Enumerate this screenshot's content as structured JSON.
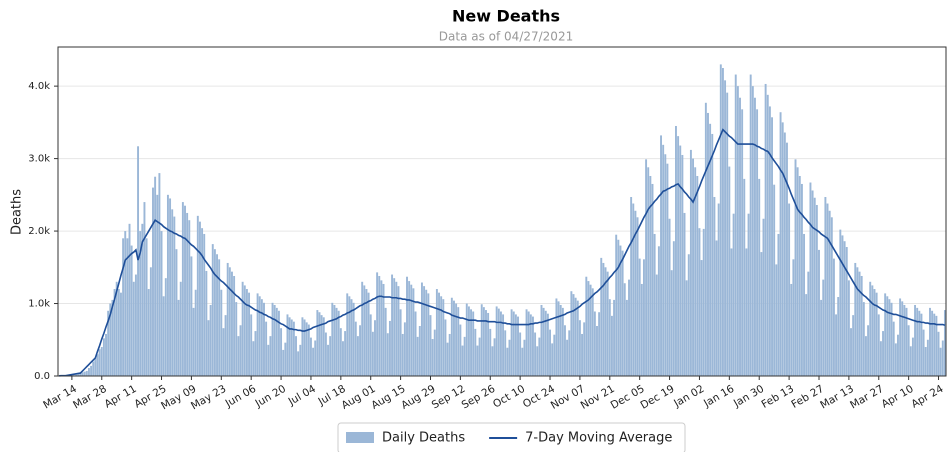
{
  "chart_data": {
    "type": "bar",
    "title": "New Deaths",
    "subtitle": "Data as of 04/27/2021",
    "y_label": "Deaths",
    "categories": [
      null,
      null,
      null,
      null,
      null,
      null,
      "Mar 14",
      null,
      null,
      null,
      null,
      null,
      null,
      null,
      null,
      null,
      null,
      null,
      null,
      null,
      "Mar 28",
      null,
      null,
      null,
      null,
      null,
      null,
      null,
      null,
      null,
      null,
      null,
      null,
      null,
      "Apr 11",
      null,
      null,
      null,
      null,
      null,
      null,
      null,
      null,
      null,
      null,
      null,
      null,
      null,
      "Apr 25",
      null,
      null,
      null,
      null,
      null,
      null,
      null,
      null,
      null,
      null,
      null,
      null,
      null,
      "May 09",
      null,
      null,
      null,
      null,
      null,
      null,
      null,
      null,
      null,
      null,
      null,
      null,
      null,
      "May 23",
      null,
      null,
      null,
      null,
      null,
      null,
      null,
      null,
      null,
      null,
      null,
      null,
      null,
      "Jun 06",
      null,
      null,
      null,
      null,
      null,
      null,
      null,
      null,
      null,
      null,
      null,
      null,
      null,
      "Jun 20",
      null,
      null,
      null,
      null,
      null,
      null,
      null,
      null,
      null,
      null,
      null,
      null,
      null,
      "Jul 04",
      null,
      null,
      null,
      null,
      null,
      null,
      null,
      null,
      null,
      null,
      null,
      null,
      null,
      "Jul 18",
      null,
      null,
      null,
      null,
      null,
      null,
      null,
      null,
      null,
      null,
      null,
      null,
      null,
      "Aug 01",
      null,
      null,
      null,
      null,
      null,
      null,
      null,
      null,
      null,
      null,
      null,
      null,
      null,
      "Aug 15",
      null,
      null,
      null,
      null,
      null,
      null,
      null,
      null,
      null,
      null,
      null,
      null,
      null,
      "Aug 29",
      null,
      null,
      null,
      null,
      null,
      null,
      null,
      null,
      null,
      null,
      null,
      null,
      null,
      "Sep 12",
      null,
      null,
      null,
      null,
      null,
      null,
      null,
      null,
      null,
      null,
      null,
      null,
      null,
      "Sep 26",
      null,
      null,
      null,
      null,
      null,
      null,
      null,
      null,
      null,
      null,
      null,
      null,
      null,
      "Oct 10",
      null,
      null,
      null,
      null,
      null,
      null,
      null,
      null,
      null,
      null,
      null,
      null,
      null,
      "Oct 24",
      null,
      null,
      null,
      null,
      null,
      null,
      null,
      null,
      null,
      null,
      null,
      null,
      null,
      "Nov 07",
      null,
      null,
      null,
      null,
      null,
      null,
      null,
      null,
      null,
      null,
      null,
      null,
      null,
      "Nov 21",
      null,
      null,
      null,
      null,
      null,
      null,
      null,
      null,
      null,
      null,
      null,
      null,
      null,
      "Dec 05",
      null,
      null,
      null,
      null,
      null,
      null,
      null,
      null,
      null,
      null,
      null,
      null,
      null,
      "Dec 19",
      null,
      null,
      null,
      null,
      null,
      null,
      null,
      null,
      null,
      null,
      null,
      null,
      null,
      "Jan 02",
      null,
      null,
      null,
      null,
      null,
      null,
      null,
      null,
      null,
      null,
      null,
      null,
      null,
      "Jan 16",
      null,
      null,
      null,
      null,
      null,
      null,
      null,
      null,
      null,
      null,
      null,
      null,
      null,
      "Jan 30",
      null,
      null,
      null,
      null,
      null,
      null,
      null,
      null,
      null,
      null,
      null,
      null,
      null,
      "Feb 13",
      null,
      null,
      null,
      null,
      null,
      null,
      null,
      null,
      null,
      null,
      null,
      null,
      null,
      "Feb 27",
      null,
      null,
      null,
      null,
      null,
      null,
      null,
      null,
      null,
      null,
      null,
      null,
      null,
      "Mar 13",
      null,
      null,
      null,
      null,
      null,
      null,
      null,
      null,
      null,
      null,
      null,
      null,
      null,
      "Mar 27",
      null,
      null,
      null,
      null,
      null,
      null,
      null,
      null,
      null,
      null,
      null,
      null,
      null,
      "Apr 10",
      null,
      null,
      null,
      null,
      null,
      null,
      null,
      null,
      null,
      null,
      null,
      null,
      null,
      "Apr 24",
      null,
      null,
      null
    ],
    "series": [
      {
        "name": "Daily Deaths",
        "type": "bar",
        "color": "#9bb7d7",
        "values": [
          1,
          4,
          3,
          5,
          7,
          9,
          10,
          11,
          18,
          25,
          40,
          50,
          60,
          70,
          110,
          140,
          200,
          250,
          300,
          370,
          400,
          520,
          580,
          900,
          1000,
          1050,
          1200,
          1300,
          1200,
          1150,
          1900,
          2000,
          1900,
          2100,
          1800,
          1300,
          1400,
          3170,
          2000,
          2100,
          2400,
          1900,
          1200,
          1500,
          2600,
          2750,
          2500,
          2800,
          2000,
          1100,
          1350,
          2500,
          2450,
          2300,
          2200,
          1750,
          1050,
          1300,
          2400,
          2350,
          2250,
          2150,
          1650,
          940,
          1190,
          2210,
          2130,
          2040,
          1960,
          1450,
          770,
          980,
          1820,
          1750,
          1680,
          1610,
          1190,
          660,
          840,
          1560,
          1500,
          1440,
          1380,
          1020,
          550,
          700,
          1300,
          1250,
          1200,
          1150,
          850,
          480,
          620,
          1140,
          1100,
          1060,
          1010,
          750,
          430,
          550,
          1010,
          980,
          940,
          900,
          660,
          360,
          460,
          850,
          810,
          780,
          750,
          550,
          340,
          430,
          810,
          780,
          740,
          710,
          530,
          390,
          490,
          910,
          880,
          840,
          810,
          600,
          430,
          550,
          1010,
          980,
          940,
          900,
          660,
          480,
          620,
          1140,
          1100,
          1060,
          1010,
          750,
          550,
          700,
          1300,
          1250,
          1200,
          1150,
          850,
          610,
          770,
          1430,
          1380,
          1320,
          1270,
          940,
          590,
          760,
          1400,
          1350,
          1300,
          1240,
          920,
          580,
          740,
          1370,
          1310,
          1260,
          1210,
          890,
          540,
          690,
          1290,
          1240,
          1190,
          1140,
          840,
          510,
          640,
          1200,
          1150,
          1100,
          1060,
          780,
          460,
          580,
          1080,
          1040,
          1000,
          950,
          710,
          420,
          540,
          1000,
          960,
          920,
          890,
          650,
          420,
          530,
          990,
          950,
          910,
          870,
          650,
          410,
          520,
          960,
          930,
          890,
          850,
          630,
          390,
          500,
          920,
          890,
          850,
          820,
          600,
          390,
          500,
          920,
          890,
          850,
          820,
          600,
          410,
          530,
          980,
          940,
          900,
          860,
          640,
          450,
          570,
          1070,
          1030,
          980,
          940,
          700,
          500,
          630,
          1170,
          1130,
          1080,
          1040,
          770,
          580,
          740,
          1370,
          1310,
          1260,
          1210,
          890,
          690,
          880,
          1630,
          1560,
          1500,
          1440,
          1060,
          830,
          1050,
          1950,
          1880,
          1800,
          1730,
          1280,
          1050,
          1330,
          2470,
          2380,
          2280,
          2190,
          1620,
          1270,
          1610,
          2990,
          2880,
          2760,
          2650,
          1960,
          1400,
          1790,
          3320,
          3190,
          3060,
          2930,
          2170,
          1460,
          1860,
          3450,
          3310,
          3180,
          3050,
          2250,
          1320,
          1680,
          3120,
          3000,
          2880,
          2760,
          2040,
          1600,
          2030,
          3770,
          3630,
          3480,
          3340,
          2470,
          1870,
          2380,
          4300,
          4250,
          4080,
          3910,
          2890,
          1760,
          2240,
          4160,
          4000,
          3840,
          3680,
          2720,
          1760,
          2240,
          4160,
          4000,
          3840,
          3680,
          2720,
          1710,
          2170,
          4030,
          3880,
          3720,
          3570,
          2640,
          1540,
          1960,
          3640,
          3500,
          3360,
          3220,
          2380,
          1270,
          1610,
          2990,
          2880,
          2760,
          2650,
          1960,
          1130,
          1440,
          2670,
          2560,
          2460,
          2360,
          1740,
          1050,
          1330,
          2470,
          2380,
          2280,
          2190,
          1620,
          850,
          1090,
          2020,
          1940,
          1860,
          1780,
          1320,
          660,
          840,
          1560,
          1500,
          1440,
          1380,
          1020,
          550,
          700,
          1300,
          1250,
          1200,
          1150,
          850,
          480,
          620,
          1140,
          1100,
          1060,
          1010,
          750,
          450,
          570,
          1070,
          1030,
          980,
          940,
          700,
          410,
          530,
          980,
          940,
          900,
          860,
          640,
          400,
          500,
          940,
          900,
          860,
          830,
          610,
          390,
          490,
          910
        ]
      },
      {
        "name": "7-Day Moving Average",
        "type": "line",
        "color": "#1f4f99",
        "values": [
          3,
          4,
          4,
          5,
          10,
          15,
          20,
          25,
          30,
          35,
          40,
          70,
          100,
          130,
          160,
          190,
          220,
          250,
          340,
          420,
          510,
          590,
          680,
          760,
          850,
          960,
          1060,
          1170,
          1280,
          1390,
          1490,
          1600,
          1630,
          1660,
          1690,
          1710,
          1740,
          1600,
          1700,
          1850,
          1900,
          1950,
          2000,
          2050,
          2100,
          2150,
          2130,
          2110,
          2090,
          2060,
          2040,
          2020,
          2000,
          1990,
          1970,
          1960,
          1940,
          1930,
          1910,
          1900,
          1870,
          1840,
          1810,
          1790,
          1760,
          1730,
          1700,
          1660,
          1610,
          1570,
          1530,
          1490,
          1440,
          1400,
          1370,
          1340,
          1310,
          1290,
          1260,
          1230,
          1200,
          1170,
          1140,
          1110,
          1090,
          1060,
          1030,
          1000,
          980,
          970,
          950,
          930,
          910,
          900,
          880,
          870,
          850,
          840,
          820,
          810,
          790,
          780,
          760,
          740,
          720,
          710,
          690,
          670,
          650,
          650,
          640,
          640,
          630,
          630,
          620,
          620,
          630,
          640,
          650,
          670,
          680,
          690,
          700,
          710,
          720,
          730,
          750,
          760,
          770,
          780,
          790,
          810,
          820,
          840,
          850,
          870,
          880,
          900,
          910,
          930,
          950,
          970,
          980,
          1000,
          1010,
          1030,
          1040,
          1060,
          1070,
          1090,
          1100,
          1100,
          1090,
          1090,
          1090,
          1090,
          1080,
          1080,
          1080,
          1070,
          1070,
          1060,
          1060,
          1050,
          1050,
          1040,
          1030,
          1020,
          1020,
          1010,
          1000,
          990,
          980,
          970,
          960,
          950,
          940,
          930,
          920,
          910,
          890,
          880,
          870,
          860,
          840,
          830,
          820,
          810,
          800,
          800,
          790,
          780,
          770,
          770,
          770,
          770,
          760,
          760,
          760,
          760,
          760,
          750,
          750,
          750,
          750,
          740,
          740,
          740,
          730,
          730,
          720,
          720,
          710,
          710,
          710,
          710,
          710,
          710,
          710,
          710,
          710,
          720,
          720,
          730,
          730,
          740,
          740,
          750,
          760,
          770,
          780,
          790,
          800,
          810,
          820,
          830,
          840,
          850,
          870,
          880,
          890,
          900,
          920,
          940,
          960,
          990,
          1010,
          1030,
          1050,
          1080,
          1110,
          1140,
          1160,
          1190,
          1220,
          1250,
          1290,
          1320,
          1360,
          1390,
          1430,
          1460,
          1500,
          1560,
          1610,
          1670,
          1730,
          1790,
          1840,
          1900,
          1960,
          2010,
          2070,
          2130,
          2190,
          2240,
          2300,
          2340,
          2370,
          2410,
          2440,
          2480,
          2510,
          2550,
          2560,
          2580,
          2590,
          2610,
          2620,
          2640,
          2650,
          2610,
          2580,
          2540,
          2510,
          2470,
          2440,
          2400,
          2470,
          2540,
          2610,
          2690,
          2760,
          2830,
          2900,
          2970,
          3040,
          3110,
          3190,
          3260,
          3330,
          3400,
          3370,
          3340,
          3310,
          3290,
          3260,
          3230,
          3200,
          3200,
          3200,
          3200,
          3200,
          3200,
          3200,
          3200,
          3190,
          3170,
          3160,
          3140,
          3130,
          3110,
          3100,
          3060,
          3010,
          2970,
          2930,
          2890,
          2840,
          2800,
          2730,
          2660,
          2590,
          2510,
          2440,
          2370,
          2300,
          2260,
          2230,
          2190,
          2160,
          2120,
          2090,
          2050,
          2030,
          2010,
          1990,
          1960,
          1940,
          1920,
          1900,
          1850,
          1800,
          1750,
          1700,
          1650,
          1600,
          1550,
          1500,
          1450,
          1400,
          1350,
          1300,
          1250,
          1200,
          1170,
          1140,
          1110,
          1090,
          1060,
          1030,
          1000,
          980,
          970,
          950,
          930,
          910,
          900,
          880,
          870,
          860,
          850,
          850,
          840,
          830,
          820,
          810,
          800,
          790,
          780,
          770,
          760,
          750,
          750,
          740,
          740,
          730,
          730,
          720,
          720,
          720,
          710,
          710,
          710,
          710,
          700
        ]
      }
    ],
    "ylim": [
      0,
      4540
    ],
    "yticks": [
      {
        "value": 0,
        "label": "0.0"
      },
      {
        "value": 1000,
        "label": "1.0k"
      },
      {
        "value": 2000,
        "label": "2.0k"
      },
      {
        "value": 3000,
        "label": "3.0k"
      },
      {
        "value": 4000,
        "label": "4.0k"
      }
    ],
    "grid": true,
    "legend": "bottom"
  }
}
